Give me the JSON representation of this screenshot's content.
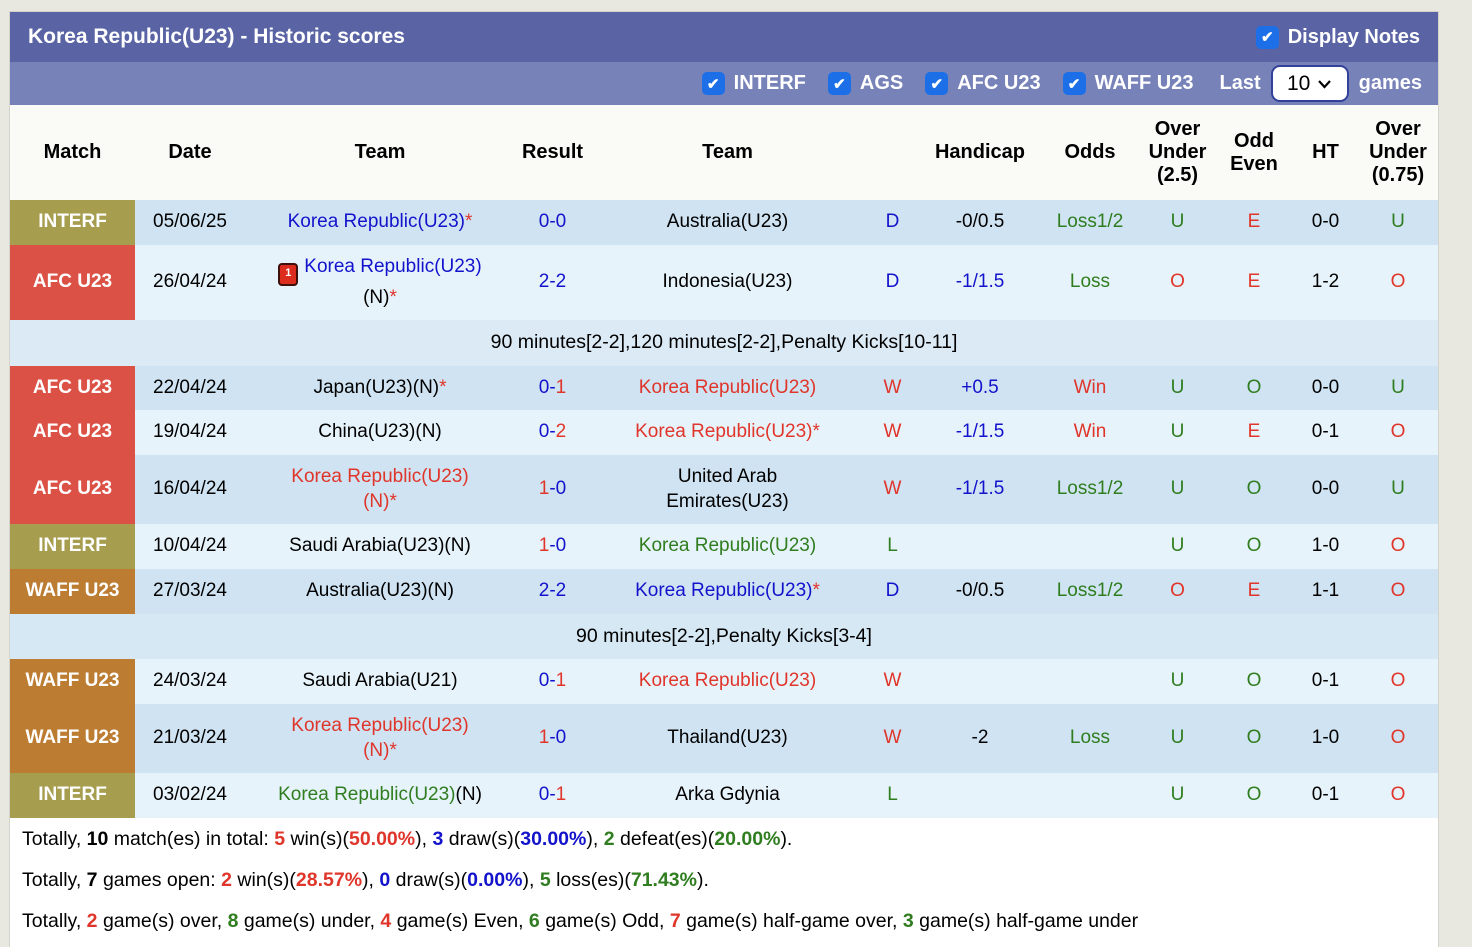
{
  "title": "Korea Republic(U23) - Historic scores",
  "display_notes": {
    "label": "Display Notes",
    "checked": true
  },
  "filters": [
    {
      "label": "INTERF",
      "checked": true
    },
    {
      "label": "AGS",
      "checked": true
    },
    {
      "label": "AFC U23",
      "checked": true
    },
    {
      "label": "WAFF U23",
      "checked": true
    }
  ],
  "last_label": "Last",
  "games_count": "10",
  "games_label": "games",
  "check_glyph": "✔",
  "colors": {
    "title_bar": "#5a64a4",
    "filter_bar": "#7782b9",
    "checkbox": "#1c6fe6",
    "win_red": "#e0352a",
    "draw_blue": "#1313cc",
    "loss_green": "#2f7d1f",
    "badge_interf": "#a79d4f",
    "badge_afc": "#dc5145",
    "badge_waff": "#bc7c32",
    "row_dark": "#cfe3f2",
    "row_light": "#e7f3fb"
  },
  "columns": [
    "Match",
    "Date",
    "Team",
    "Result",
    "Team",
    "",
    "Handicap",
    "Odds",
    "Over\nUnder\n(2.5)",
    "Odd\nEven",
    "HT",
    "Over\nUnder\n(0.75)"
  ],
  "rows": [
    {
      "type": "match",
      "bg": "dark",
      "badge": {
        "label": "INTERF",
        "kind": "interf"
      },
      "date": "05/06/25",
      "home": [
        {
          "t": "Korea Republic(U23)",
          "c": "blue"
        },
        {
          "t": "*",
          "c": "red"
        }
      ],
      "result": [
        {
          "t": "0-0",
          "c": "blue"
        }
      ],
      "away": [
        {
          "t": "Australia(U23)",
          "c": "black"
        }
      ],
      "wdl": {
        "t": "D",
        "c": "blue"
      },
      "handicap": {
        "t": "-0/0.5",
        "c": "black"
      },
      "odds": {
        "t": "Loss1/2",
        "c": "green"
      },
      "ou25": {
        "t": "U",
        "c": "green"
      },
      "oddeven": {
        "t": "E",
        "c": "red"
      },
      "ht": "0-0",
      "ou075": {
        "t": "U",
        "c": "green"
      }
    },
    {
      "type": "match",
      "bg": "light",
      "badge": {
        "label": "AFC U23",
        "kind": "afc"
      },
      "date": "26/04/24",
      "home": [
        {
          "icon": "red-card",
          "t": "1"
        },
        {
          "t": "Korea Republic(U23)",
          "c": "blue"
        },
        {
          "br": true
        },
        {
          "t": "(N)",
          "c": "black"
        },
        {
          "t": "*",
          "c": "red"
        }
      ],
      "result": [
        {
          "t": "2-2",
          "c": "blue"
        }
      ],
      "away": [
        {
          "t": "Indonesia(U23)",
          "c": "black"
        }
      ],
      "wdl": {
        "t": "D",
        "c": "blue"
      },
      "handicap": {
        "t": "-1/1.5",
        "c": "blue"
      },
      "odds": {
        "t": "Loss",
        "c": "green"
      },
      "ou25": {
        "t": "O",
        "c": "red"
      },
      "oddeven": {
        "t": "E",
        "c": "red"
      },
      "ht": "1-2",
      "ou075": {
        "t": "O",
        "c": "red"
      }
    },
    {
      "type": "note",
      "bg": "note1",
      "text": "90 minutes[2-2],120 minutes[2-2],Penalty Kicks[10-11]"
    },
    {
      "type": "match",
      "bg": "dark",
      "badge": {
        "label": "AFC U23",
        "kind": "afc"
      },
      "date": "22/04/24",
      "home": [
        {
          "t": "Japan(U23)(N)",
          "c": "black"
        },
        {
          "t": "*",
          "c": "red"
        }
      ],
      "result": [
        {
          "t": "0-",
          "c": "blue"
        },
        {
          "t": "1",
          "c": "red"
        }
      ],
      "away": [
        {
          "t": "Korea Republic(U23)",
          "c": "red"
        }
      ],
      "wdl": {
        "t": "W",
        "c": "red"
      },
      "handicap": {
        "t": "+0.5",
        "c": "blue"
      },
      "odds": {
        "t": "Win",
        "c": "red"
      },
      "ou25": {
        "t": "U",
        "c": "green"
      },
      "oddeven": {
        "t": "O",
        "c": "green"
      },
      "ht": "0-0",
      "ou075": {
        "t": "U",
        "c": "green"
      }
    },
    {
      "type": "match",
      "bg": "light",
      "badge": {
        "label": "AFC U23",
        "kind": "afc"
      },
      "date": "19/04/24",
      "home": [
        {
          "t": "China(U23)(N)",
          "c": "black"
        }
      ],
      "result": [
        {
          "t": "0-",
          "c": "blue"
        },
        {
          "t": "2",
          "c": "red"
        }
      ],
      "away": [
        {
          "t": "Korea Republic(U23)",
          "c": "red"
        },
        {
          "t": "*",
          "c": "red"
        }
      ],
      "wdl": {
        "t": "W",
        "c": "red"
      },
      "handicap": {
        "t": "-1/1.5",
        "c": "blue"
      },
      "odds": {
        "t": "Win",
        "c": "red"
      },
      "ou25": {
        "t": "U",
        "c": "green"
      },
      "oddeven": {
        "t": "E",
        "c": "red"
      },
      "ht": "0-1",
      "ou075": {
        "t": "O",
        "c": "red"
      }
    },
    {
      "type": "match",
      "bg": "dark",
      "badge": {
        "label": "AFC U23",
        "kind": "afc"
      },
      "date": "16/04/24",
      "home": [
        {
          "t": "Korea Republic(U23)",
          "c": "red"
        },
        {
          "br": true
        },
        {
          "t": "(N)",
          "c": "red"
        },
        {
          "t": "*",
          "c": "red"
        }
      ],
      "result": [
        {
          "t": "1",
          "c": "red"
        },
        {
          "t": "-0",
          "c": "blue"
        }
      ],
      "away": [
        {
          "t": "United Arab",
          "c": "black"
        },
        {
          "br": true
        },
        {
          "t": "Emirates(U23)",
          "c": "black"
        }
      ],
      "wdl": {
        "t": "W",
        "c": "red"
      },
      "handicap": {
        "t": "-1/1.5",
        "c": "blue"
      },
      "odds": {
        "t": "Loss1/2",
        "c": "green"
      },
      "ou25": {
        "t": "U",
        "c": "green"
      },
      "oddeven": {
        "t": "O",
        "c": "green"
      },
      "ht": "0-0",
      "ou075": {
        "t": "U",
        "c": "green"
      }
    },
    {
      "type": "match",
      "bg": "light",
      "badge": {
        "label": "INTERF",
        "kind": "interf"
      },
      "date": "10/04/24",
      "home": [
        {
          "t": "Saudi Arabia(U23)(N)",
          "c": "black"
        }
      ],
      "result": [
        {
          "t": "1",
          "c": "red"
        },
        {
          "t": "-0",
          "c": "blue"
        }
      ],
      "away": [
        {
          "t": "Korea Republic(U23)",
          "c": "green"
        }
      ],
      "wdl": {
        "t": "L",
        "c": "green"
      },
      "handicap": {
        "t": "",
        "c": "black"
      },
      "odds": {
        "t": "",
        "c": "black"
      },
      "ou25": {
        "t": "U",
        "c": "green"
      },
      "oddeven": {
        "t": "O",
        "c": "green"
      },
      "ht": "1-0",
      "ou075": {
        "t": "O",
        "c": "red"
      }
    },
    {
      "type": "match",
      "bg": "dark",
      "badge": {
        "label": "WAFF U23",
        "kind": "waff"
      },
      "date": "27/03/24",
      "home": [
        {
          "t": "Australia(U23)(N)",
          "c": "black"
        }
      ],
      "result": [
        {
          "t": "2-2",
          "c": "blue"
        }
      ],
      "away": [
        {
          "t": "Korea Republic(U23)",
          "c": "blue"
        },
        {
          "t": "*",
          "c": "red"
        }
      ],
      "wdl": {
        "t": "D",
        "c": "blue"
      },
      "handicap": {
        "t": "-0/0.5",
        "c": "black"
      },
      "odds": {
        "t": "Loss1/2",
        "c": "green"
      },
      "ou25": {
        "t": "O",
        "c": "red"
      },
      "oddeven": {
        "t": "E",
        "c": "red"
      },
      "ht": "1-1",
      "ou075": {
        "t": "O",
        "c": "red"
      }
    },
    {
      "type": "note",
      "bg": "note2",
      "text": "90 minutes[2-2],Penalty Kicks[3-4]"
    },
    {
      "type": "match",
      "bg": "light",
      "badge": {
        "label": "WAFF U23",
        "kind": "waff"
      },
      "date": "24/03/24",
      "home": [
        {
          "t": "Saudi Arabia(U21)",
          "c": "black"
        }
      ],
      "result": [
        {
          "t": "0-",
          "c": "blue"
        },
        {
          "t": "1",
          "c": "red"
        }
      ],
      "away": [
        {
          "t": "Korea Republic(U23)",
          "c": "red"
        }
      ],
      "wdl": {
        "t": "W",
        "c": "red"
      },
      "handicap": {
        "t": "",
        "c": "black"
      },
      "odds": {
        "t": "",
        "c": "black"
      },
      "ou25": {
        "t": "U",
        "c": "green"
      },
      "oddeven": {
        "t": "O",
        "c": "green"
      },
      "ht": "0-1",
      "ou075": {
        "t": "O",
        "c": "red"
      }
    },
    {
      "type": "match",
      "bg": "dark",
      "badge": {
        "label": "WAFF U23",
        "kind": "waff"
      },
      "date": "21/03/24",
      "home": [
        {
          "t": "Korea Republic(U23)",
          "c": "red"
        },
        {
          "br": true
        },
        {
          "t": "(N)",
          "c": "red"
        },
        {
          "t": "*",
          "c": "red"
        }
      ],
      "result": [
        {
          "t": "1",
          "c": "red"
        },
        {
          "t": "-0",
          "c": "blue"
        }
      ],
      "away": [
        {
          "t": "Thailand(U23)",
          "c": "black"
        }
      ],
      "wdl": {
        "t": "W",
        "c": "red"
      },
      "handicap": {
        "t": "-2",
        "c": "black"
      },
      "odds": {
        "t": "Loss",
        "c": "green"
      },
      "ou25": {
        "t": "U",
        "c": "green"
      },
      "oddeven": {
        "t": "O",
        "c": "green"
      },
      "ht": "1-0",
      "ou075": {
        "t": "O",
        "c": "red"
      }
    },
    {
      "type": "match",
      "bg": "light",
      "badge": {
        "label": "INTERF",
        "kind": "interf"
      },
      "date": "03/02/24",
      "home": [
        {
          "t": "Korea Republic(U23)",
          "c": "green"
        },
        {
          "t": "(N)",
          "c": "black"
        }
      ],
      "result": [
        {
          "t": "0-",
          "c": "blue"
        },
        {
          "t": "1",
          "c": "red"
        }
      ],
      "away": [
        {
          "t": "Arka Gdynia",
          "c": "black"
        }
      ],
      "wdl": {
        "t": "L",
        "c": "green"
      },
      "handicap": {
        "t": "",
        "c": "black"
      },
      "odds": {
        "t": "",
        "c": "black"
      },
      "ou25": {
        "t": "U",
        "c": "green"
      },
      "oddeven": {
        "t": "O",
        "c": "green"
      },
      "ht": "0-1",
      "ou075": {
        "t": "O",
        "c": "red"
      }
    }
  ],
  "summary": [
    [
      {
        "t": "Totally, "
      },
      {
        "t": "10",
        "b": true
      },
      {
        "t": " match(es) in total: "
      },
      {
        "t": "5",
        "c": "red",
        "b": true
      },
      {
        "t": " win(s)("
      },
      {
        "t": "50.00%",
        "c": "red",
        "b": true
      },
      {
        "t": "), "
      },
      {
        "t": "3",
        "c": "blue",
        "b": true
      },
      {
        "t": " draw(s)("
      },
      {
        "t": "30.00%",
        "c": "blue",
        "b": true
      },
      {
        "t": "), "
      },
      {
        "t": "2",
        "c": "green",
        "b": true
      },
      {
        "t": " defeat(es)("
      },
      {
        "t": "20.00%",
        "c": "green",
        "b": true
      },
      {
        "t": ")."
      }
    ],
    [
      {
        "t": "Totally, "
      },
      {
        "t": "7",
        "b": true
      },
      {
        "t": " games open: "
      },
      {
        "t": "2",
        "c": "red",
        "b": true
      },
      {
        "t": " win(s)("
      },
      {
        "t": "28.57%",
        "c": "red",
        "b": true
      },
      {
        "t": "), "
      },
      {
        "t": "0",
        "c": "blue",
        "b": true
      },
      {
        "t": " draw(s)("
      },
      {
        "t": "0.00%",
        "c": "blue",
        "b": true
      },
      {
        "t": "), "
      },
      {
        "t": "5",
        "c": "green",
        "b": true
      },
      {
        "t": " loss(es)("
      },
      {
        "t": "71.43%",
        "c": "green",
        "b": true
      },
      {
        "t": ")."
      }
    ],
    [
      {
        "t": "Totally, "
      },
      {
        "t": "2",
        "c": "red",
        "b": true
      },
      {
        "t": " game(s) over, "
      },
      {
        "t": "8",
        "c": "green",
        "b": true
      },
      {
        "t": " game(s) under, "
      },
      {
        "t": "4",
        "c": "red",
        "b": true
      },
      {
        "t": " game(s) Even, "
      },
      {
        "t": "6",
        "c": "green",
        "b": true
      },
      {
        "t": " game(s) Odd, "
      },
      {
        "t": "7",
        "c": "red",
        "b": true
      },
      {
        "t": " game(s) half-game over, "
      },
      {
        "t": "3",
        "c": "green",
        "b": true
      },
      {
        "t": " game(s) half-game under"
      }
    ]
  ]
}
